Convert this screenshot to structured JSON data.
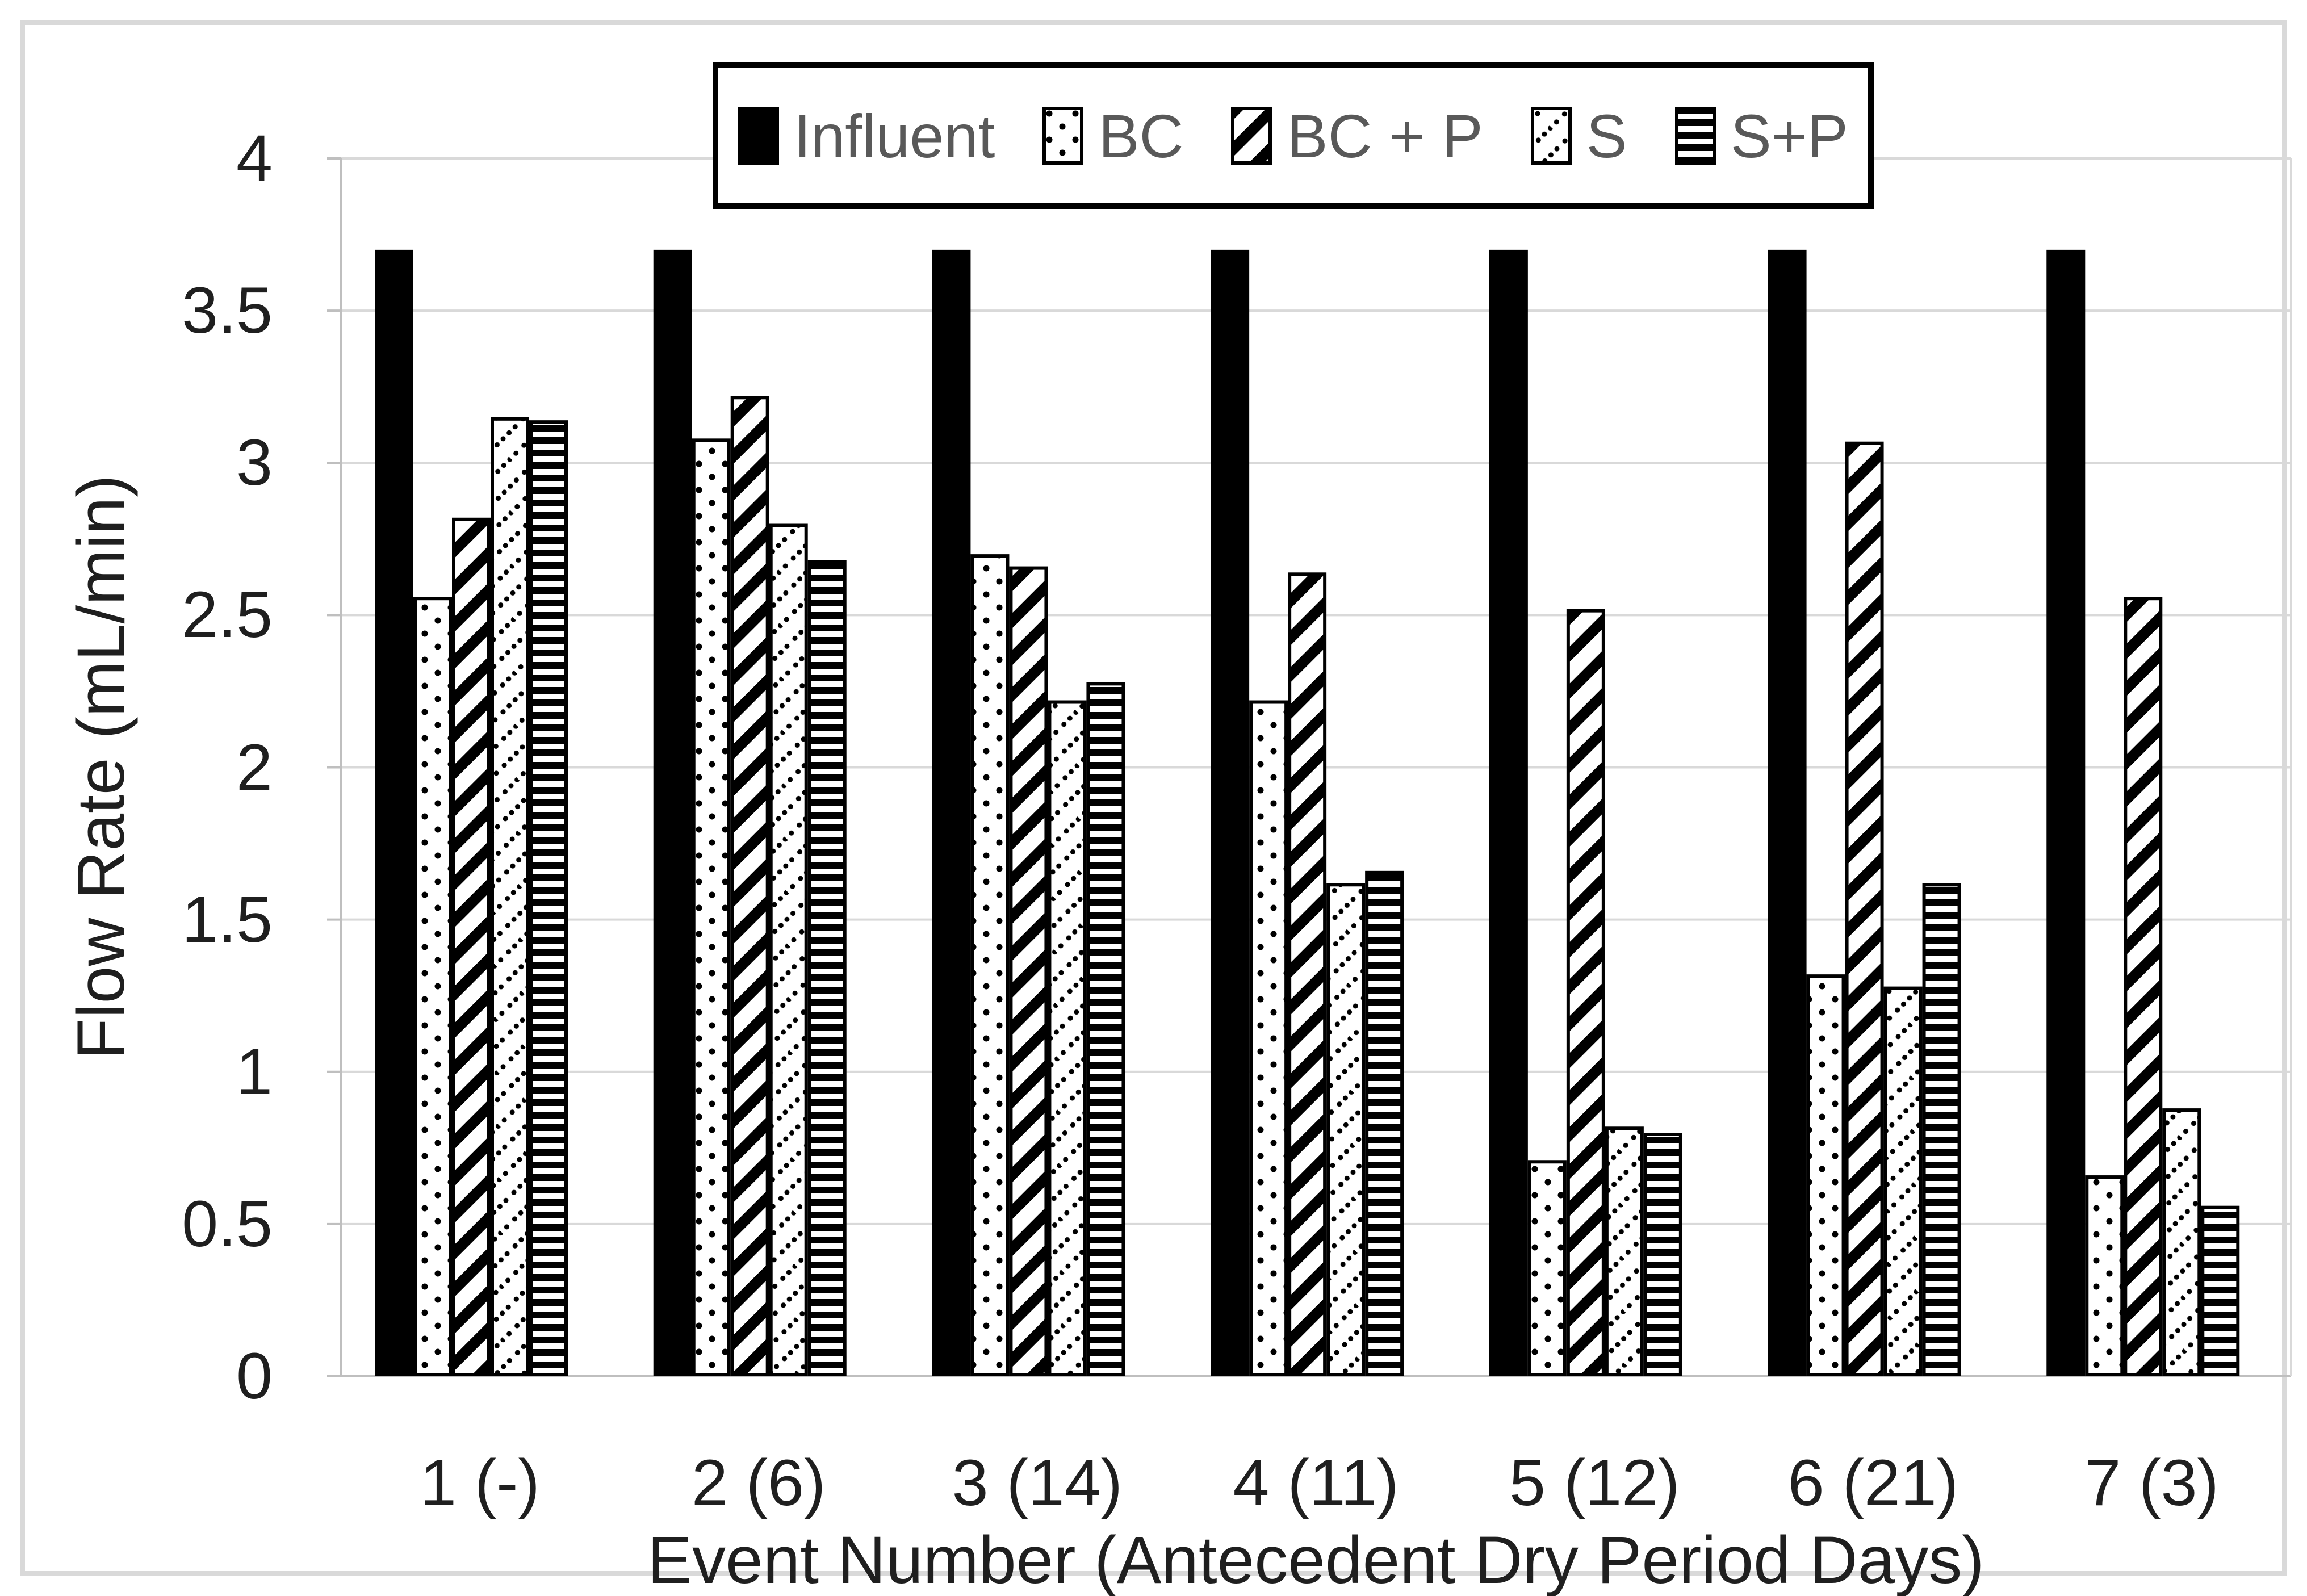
{
  "figure": {
    "background_color": "#ffffff",
    "frame_color": "#d9d9d9"
  },
  "chart_data": {
    "type": "bar",
    "title": "",
    "xlabel": "Event Number (Antecedent Dry Period Days)",
    "ylabel": "Flow Rate (mL/min)",
    "ylim": [
      0,
      4
    ],
    "ytick_step": 0.5,
    "yticks": [
      "0",
      "0.5",
      "1",
      "1.5",
      "2",
      "2.5",
      "3",
      "3.5",
      "4"
    ],
    "grid": "horizontal",
    "legend_position": "top-center",
    "categories": [
      "1 (-)",
      "2 (6)",
      "3 (14)",
      "4 (11)",
      "5 (12)",
      "6 (21)",
      "7 (3)"
    ],
    "series": [
      {
        "name": "Influent",
        "pattern": "solid-black",
        "values": [
          3.7,
          3.7,
          3.7,
          3.7,
          3.7,
          3.7,
          3.7
        ]
      },
      {
        "name": "BC",
        "pattern": "dots",
        "values": [
          2.56,
          3.08,
          2.7,
          2.22,
          0.71,
          1.32,
          0.66
        ]
      },
      {
        "name": "BC + P",
        "pattern": "diagonal-stripes",
        "values": [
          2.82,
          3.22,
          2.66,
          2.64,
          2.52,
          3.07,
          2.56
        ]
      },
      {
        "name": "S",
        "pattern": "diagonal-dot-dashes",
        "values": [
          3.15,
          2.8,
          2.22,
          1.62,
          0.82,
          1.28,
          0.88
        ]
      },
      {
        "name": "S+P",
        "pattern": "horizontal-stripes",
        "values": [
          3.14,
          2.68,
          2.28,
          1.66,
          0.8,
          1.62,
          0.56
        ]
      }
    ],
    "colors": {
      "bar_fill": "#000000",
      "bar_background": "#ffffff",
      "gridline": "#d9d9d9",
      "axis_line": "#bfbfbf",
      "tick_label": "#1f1f1f",
      "legend_text": "#595959"
    }
  }
}
